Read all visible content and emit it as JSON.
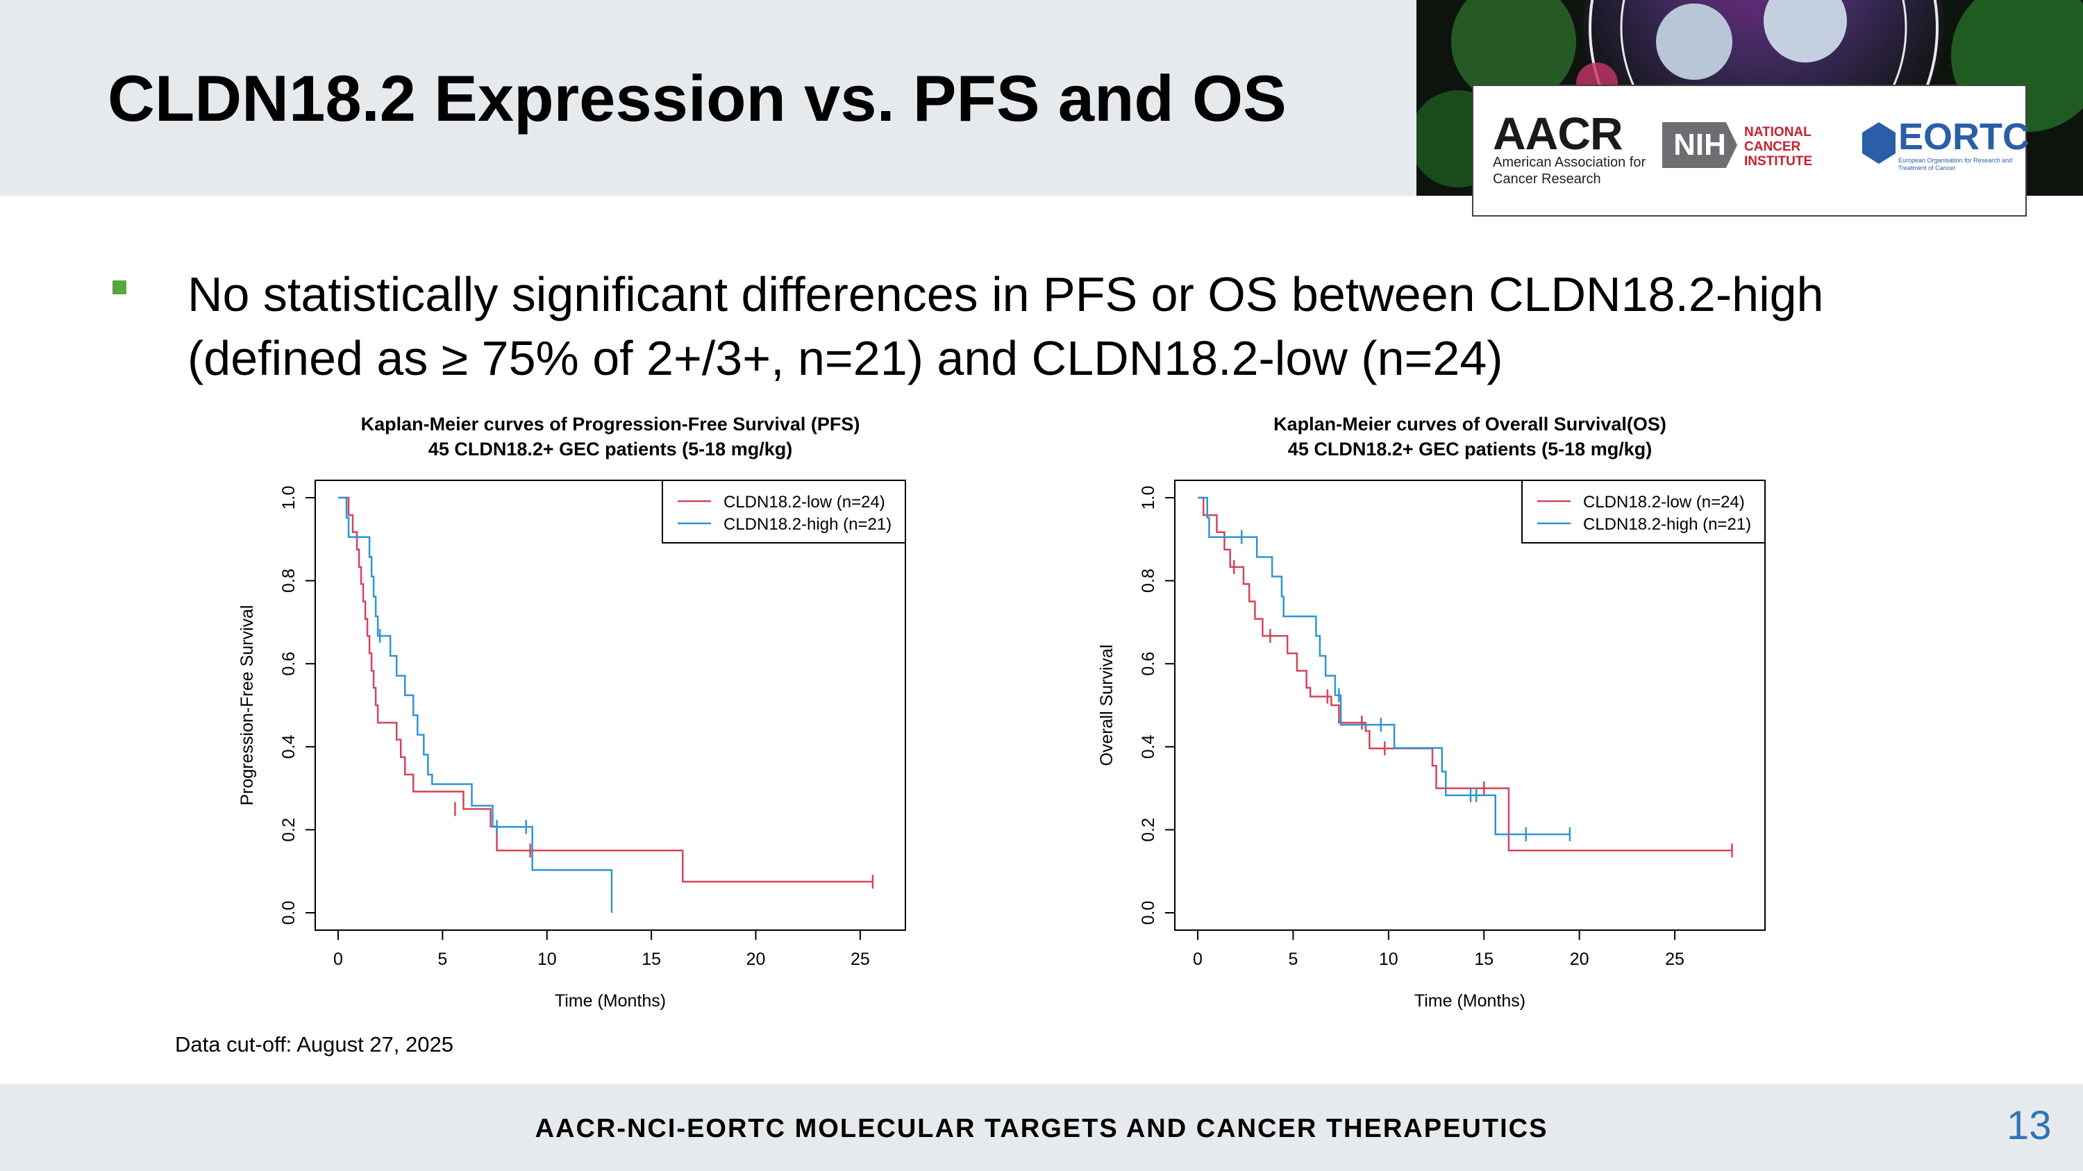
{
  "title": "CLDN18.2 Expression vs. PFS and OS",
  "logos": {
    "aacr": "AACR",
    "aacr_sub": "American Association for Cancer Research",
    "nih": "NIH",
    "nci": "NATIONAL CANCER INSTITUTE",
    "eortc": "EORTC",
    "eortc_sub": "European Organisation for Research and Treatment of Cancer"
  },
  "bullet": "No statistically significant differences in PFS or OS between CLDN18.2-high (defined as ≥ 75% of 2+/3+, n=21) and CLDN18.2-low (n=24)",
  "data_cutoff": "Data cut-off: August 27, 2025",
  "footer": "AACR-NCI-EORTC MOLECULAR TARGETS AND CANCER THERAPEUTICS",
  "page_number": "13",
  "colors": {
    "low": "#d6435a",
    "high": "#2e95d3",
    "accent": "#5aa53b",
    "page_number": "#2e74b5"
  },
  "chart_data": [
    {
      "type": "line",
      "subtype": "kaplan-meier step",
      "title": "Kaplan-Meier curves of Progression-Free Survival (PFS)",
      "subtitle": "45 CLDN18.2+ GEC patients (5-18 mg/kg)",
      "xlabel": "Time (Months)",
      "ylabel": "Progression-Free Survival",
      "xlim": [
        0,
        26.5
      ],
      "ylim": [
        0,
        1.0
      ],
      "xticks": [
        "0",
        "5",
        "10",
        "15",
        "20",
        "25"
      ],
      "yticks": [
        "0.0",
        "0.2",
        "0.4",
        "0.6",
        "0.8",
        "1.0"
      ],
      "legend_position": "top-right",
      "series": [
        {
          "name": "CLDN18.2-low (n=24)",
          "color_key": "low",
          "steps": [
            [
              0,
              1.0
            ],
            [
              0.5,
              0.958
            ],
            [
              0.7,
              0.917
            ],
            [
              0.9,
              0.875
            ],
            [
              1.0,
              0.833
            ],
            [
              1.1,
              0.792
            ],
            [
              1.2,
              0.75
            ],
            [
              1.3,
              0.708
            ],
            [
              1.4,
              0.667
            ],
            [
              1.5,
              0.625
            ],
            [
              1.6,
              0.583
            ],
            [
              1.7,
              0.542
            ],
            [
              1.8,
              0.5
            ],
            [
              1.9,
              0.458
            ],
            [
              2.8,
              0.417
            ],
            [
              3.0,
              0.375
            ],
            [
              3.2,
              0.333
            ],
            [
              3.6,
              0.292
            ],
            [
              6.0,
              0.25
            ],
            [
              7.3,
              0.208
            ],
            [
              7.6,
              0.15
            ],
            [
              16.5,
              0.075
            ],
            [
              25.6,
              0.075
            ]
          ],
          "censored": [
            [
              5.6,
              0.25
            ],
            [
              9.2,
              0.15
            ],
            [
              25.6,
              0.075
            ]
          ]
        },
        {
          "name": "CLDN18.2-high (n=21)",
          "color_key": "high",
          "steps": [
            [
              0,
              1.0
            ],
            [
              0.4,
              0.952
            ],
            [
              0.5,
              0.905
            ],
            [
              1.5,
              0.857
            ],
            [
              1.6,
              0.81
            ],
            [
              1.7,
              0.762
            ],
            [
              1.8,
              0.714
            ],
            [
              1.9,
              0.667
            ],
            [
              2.5,
              0.619
            ],
            [
              2.8,
              0.571
            ],
            [
              3.2,
              0.524
            ],
            [
              3.6,
              0.476
            ],
            [
              3.8,
              0.429
            ],
            [
              4.1,
              0.381
            ],
            [
              4.3,
              0.333
            ],
            [
              4.5,
              0.31
            ],
            [
              6.4,
              0.258
            ],
            [
              7.4,
              0.207
            ],
            [
              9.3,
              0.103
            ],
            [
              13.1,
              0.0
            ],
            [
              13.1,
              0.0
            ]
          ],
          "censored": [
            [
              2.0,
              0.667
            ],
            [
              7.6,
              0.207
            ],
            [
              9.0,
              0.207
            ]
          ]
        }
      ]
    },
    {
      "type": "line",
      "subtype": "kaplan-meier step",
      "title": "Kaplan-Meier curves of Overall Survival(OS)",
      "subtitle": "45 CLDN18.2+ GEC patients (5-18 mg/kg)",
      "xlabel": "Time (Months)",
      "ylabel": "Overall Survival",
      "xlim": [
        0,
        29
      ],
      "ylim": [
        0,
        1.0
      ],
      "xticks": [
        "0",
        "5",
        "10",
        "15",
        "20",
        "25"
      ],
      "yticks": [
        "0.0",
        "0.2",
        "0.4",
        "0.6",
        "0.8",
        "1.0"
      ],
      "legend_position": "top-right",
      "series": [
        {
          "name": "CLDN18.2-low (n=24)",
          "color_key": "low",
          "steps": [
            [
              0,
              1.0
            ],
            [
              0.3,
              0.958
            ],
            [
              1.0,
              0.917
            ],
            [
              1.4,
              0.875
            ],
            [
              1.7,
              0.833
            ],
            [
              2.4,
              0.792
            ],
            [
              2.7,
              0.75
            ],
            [
              3.0,
              0.708
            ],
            [
              3.4,
              0.667
            ],
            [
              4.7,
              0.625
            ],
            [
              5.2,
              0.583
            ],
            [
              5.7,
              0.542
            ],
            [
              5.9,
              0.521
            ],
            [
              7.0,
              0.5
            ],
            [
              7.4,
              0.458
            ],
            [
              8.8,
              0.438
            ],
            [
              9.0,
              0.396
            ],
            [
              12.3,
              0.354
            ],
            [
              12.5,
              0.3
            ],
            [
              16.3,
              0.15
            ],
            [
              28.0,
              0.15
            ]
          ],
          "censored": [
            [
              1.9,
              0.833
            ],
            [
              3.8,
              0.667
            ],
            [
              6.8,
              0.521
            ],
            [
              8.6,
              0.458
            ],
            [
              9.8,
              0.396
            ],
            [
              15.0,
              0.3
            ],
            [
              28.0,
              0.15
            ]
          ]
        },
        {
          "name": "CLDN18.2-high (n=21)",
          "color_key": "high",
          "steps": [
            [
              0,
              1.0
            ],
            [
              0.5,
              0.952
            ],
            [
              0.6,
              0.905
            ],
            [
              3.1,
              0.857
            ],
            [
              3.9,
              0.81
            ],
            [
              4.4,
              0.762
            ],
            [
              4.5,
              0.714
            ],
            [
              6.2,
              0.667
            ],
            [
              6.4,
              0.619
            ],
            [
              6.7,
              0.571
            ],
            [
              7.2,
              0.524
            ],
            [
              7.5,
              0.453
            ],
            [
              10.3,
              0.397
            ],
            [
              12.8,
              0.34
            ],
            [
              13.0,
              0.283
            ],
            [
              15.6,
              0.189
            ],
            [
              19.5,
              0.189
            ]
          ],
          "censored": [
            [
              2.3,
              0.905
            ],
            [
              7.4,
              0.524
            ],
            [
              9.6,
              0.453
            ],
            [
              14.3,
              0.283
            ],
            [
              14.6,
              0.283
            ],
            [
              17.2,
              0.189
            ],
            [
              19.5,
              0.189
            ]
          ]
        }
      ]
    }
  ]
}
